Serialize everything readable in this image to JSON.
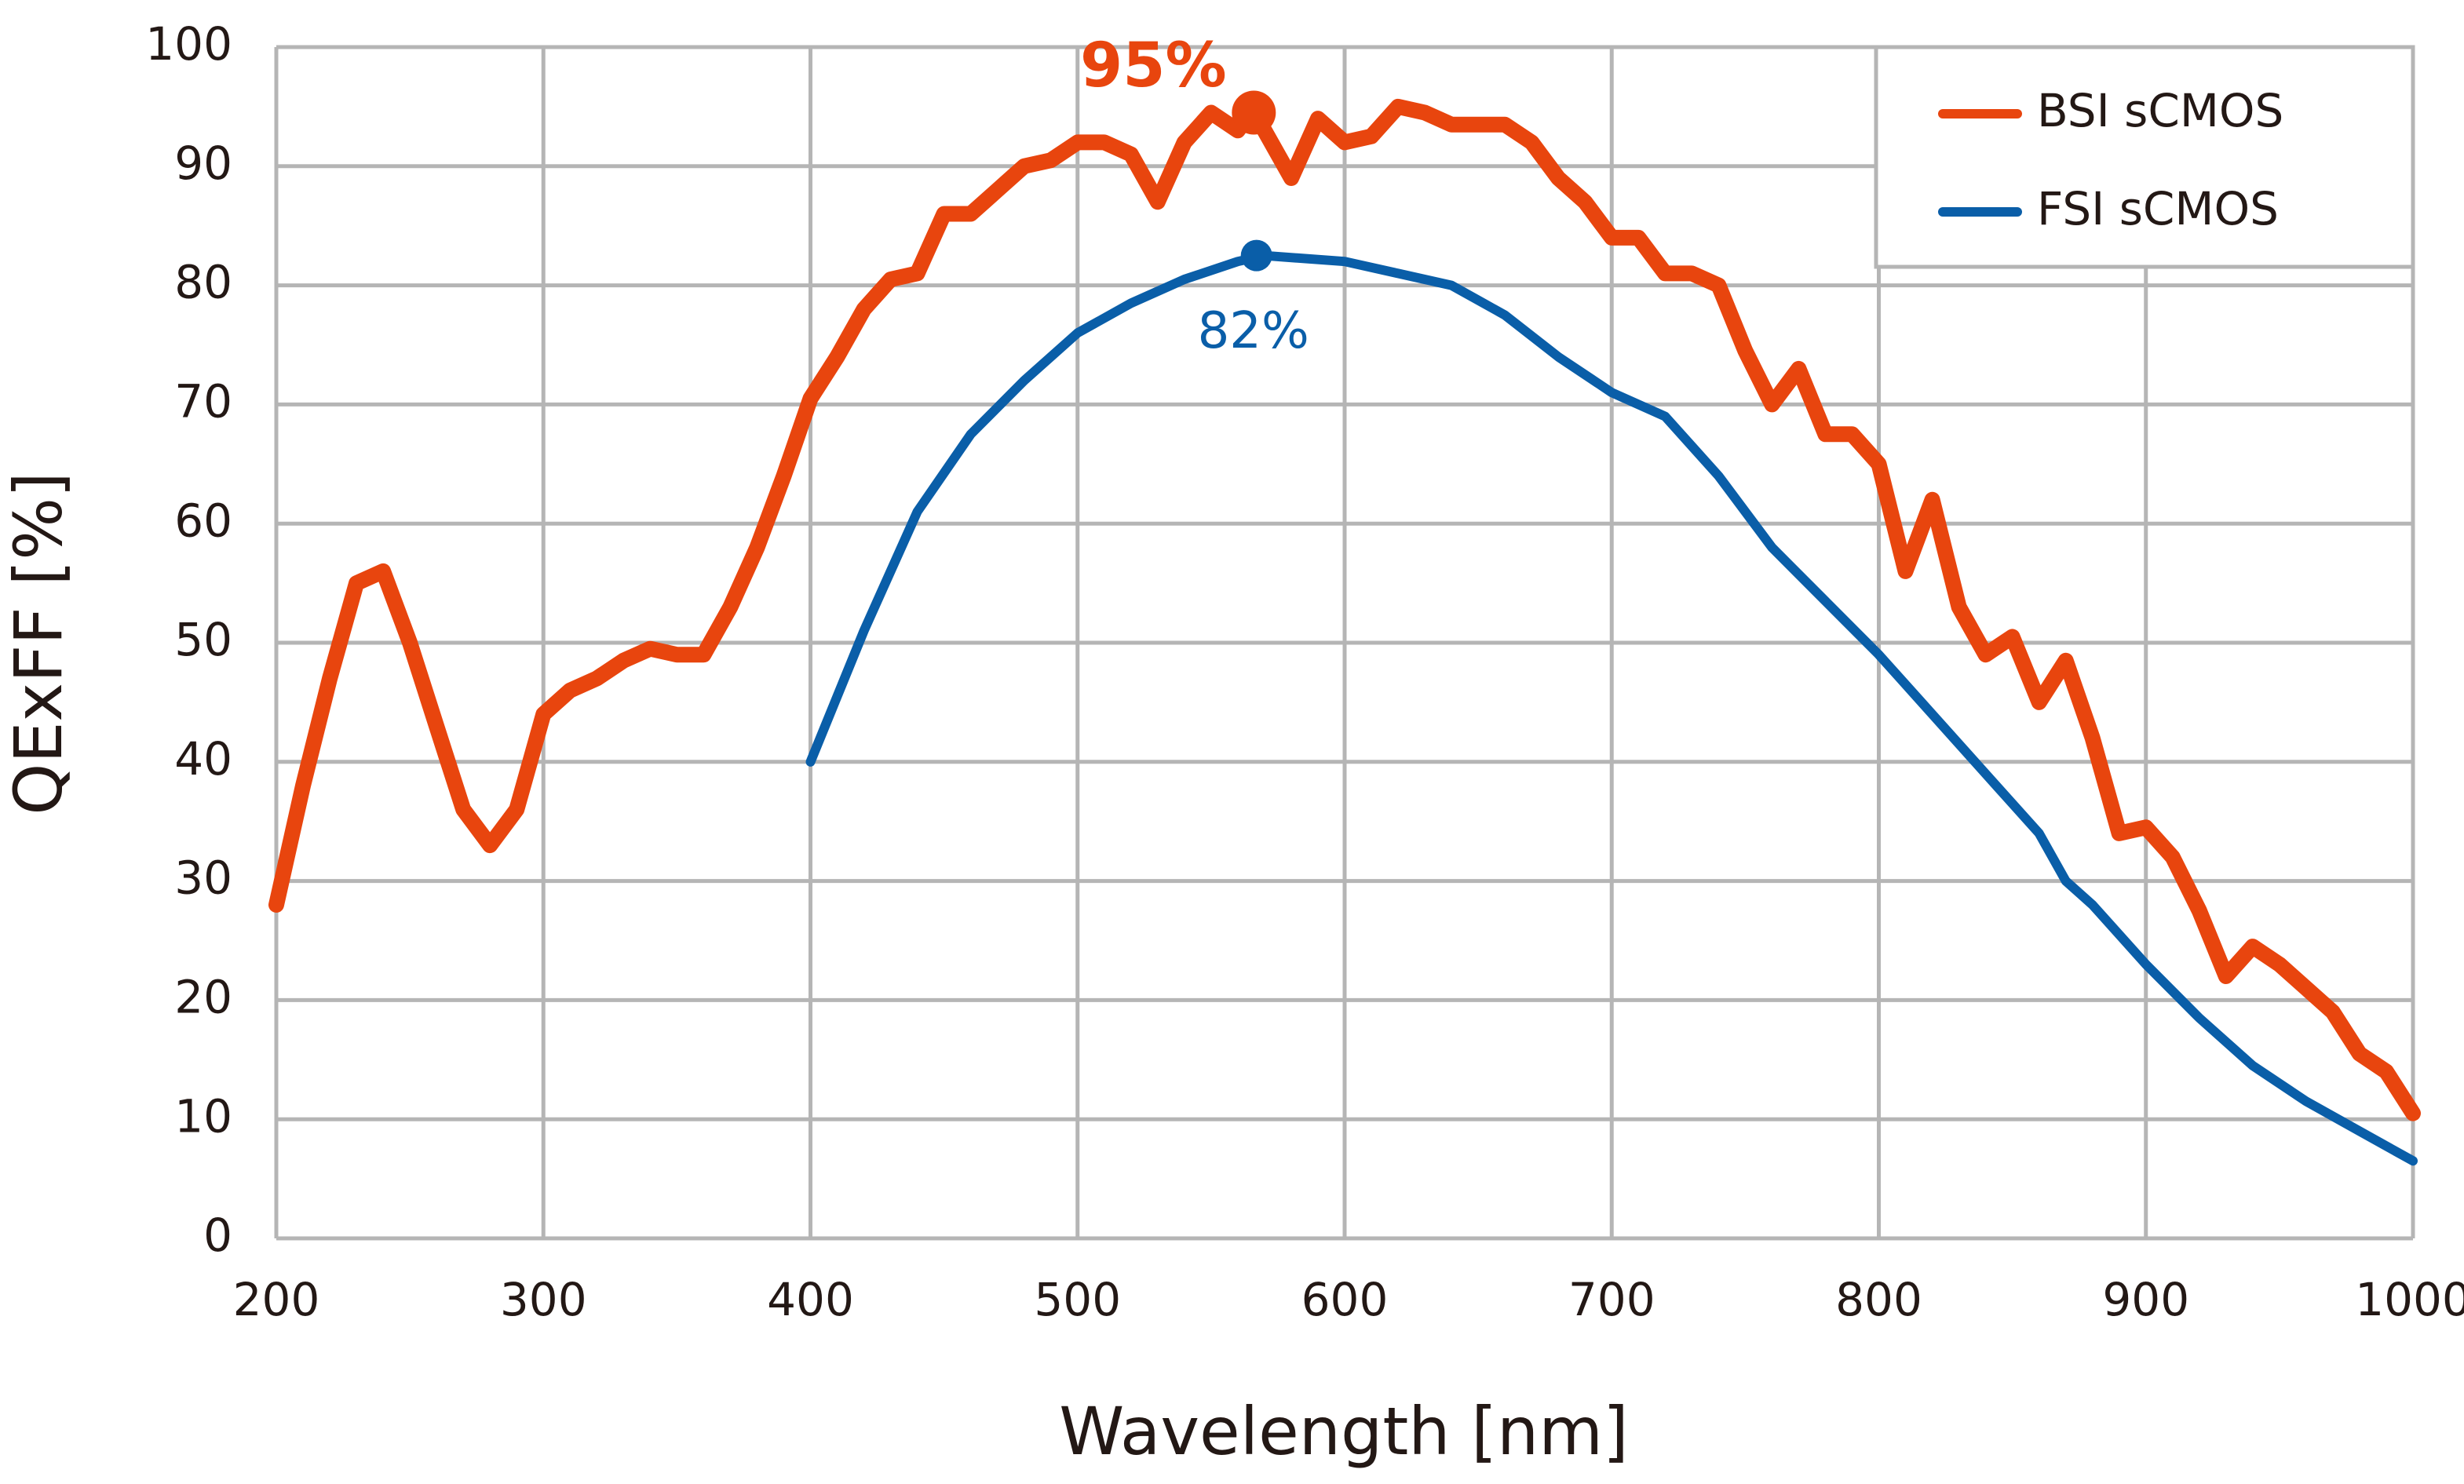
{
  "chart_data": {
    "type": "line",
    "xlabel": "Wavelength [nm]",
    "ylabel": "QExFF [%]",
    "xlim": [
      200,
      1000
    ],
    "xticks": [
      200,
      300,
      400,
      500,
      600,
      700,
      800,
      900,
      1000
    ],
    "ylim": [
      0,
      100
    ],
    "yticks": [
      0,
      10,
      20,
      30,
      40,
      50,
      60,
      70,
      80,
      90,
      100
    ],
    "grid": true,
    "legend": "upper right",
    "series": [
      {
        "name": "BSI sCMOS",
        "color": "#e8450e",
        "x": [
          200,
          210,
          220,
          230,
          240,
          250,
          260,
          270,
          280,
          290,
          300,
          310,
          320,
          330,
          340,
          350,
          360,
          370,
          380,
          390,
          400,
          410,
          420,
          430,
          440,
          450,
          460,
          470,
          480,
          490,
          500,
          510,
          520,
          530,
          540,
          550,
          560,
          565,
          570,
          580,
          590,
          600,
          610,
          620,
          630,
          640,
          650,
          660,
          670,
          680,
          690,
          700,
          710,
          720,
          730,
          740,
          750,
          760,
          770,
          780,
          790,
          800,
          810,
          820,
          830,
          840,
          850,
          860,
          870,
          880,
          890,
          900,
          910,
          920,
          930,
          940,
          950,
          960,
          970,
          980,
          990,
          1000
        ],
        "values": [
          28,
          38,
          47,
          55,
          56,
          50,
          43,
          36,
          33,
          36,
          44,
          46,
          47,
          48.5,
          49.5,
          49,
          49,
          53,
          58,
          64,
          70.5,
          74,
          78,
          80.5,
          81,
          86,
          86,
          88,
          90,
          90.5,
          92,
          92,
          91,
          87,
          92,
          94.5,
          93,
          94.5,
          93,
          89,
          94,
          92,
          92.5,
          95,
          94.5,
          93.5,
          93.5,
          93.5,
          92,
          89,
          87,
          84,
          84,
          81,
          81,
          80,
          74.5,
          70,
          73,
          67.5,
          67.5,
          65,
          56,
          62,
          53,
          49,
          50.5,
          45,
          48.5,
          42,
          34,
          34.5,
          32,
          27.5,
          22,
          24.5,
          23,
          21,
          19,
          15.5,
          14,
          10.5
        ]
      },
      {
        "name": "FSI sCMOS",
        "color": "#0a5ea8",
        "x": [
          400,
          420,
          440,
          460,
          480,
          500,
          520,
          540,
          560,
          570,
          600,
          620,
          640,
          660,
          680,
          700,
          720,
          740,
          760,
          780,
          800,
          820,
          840,
          860,
          870,
          880,
          900,
          920,
          940,
          960,
          980,
          1000
        ],
        "values": [
          40,
          51,
          61,
          67.5,
          72,
          76,
          78.5,
          80.5,
          82,
          82.5,
          82,
          81,
          80,
          77.5,
          74,
          71,
          69,
          64,
          58,
          53.5,
          49,
          44,
          39,
          34,
          30,
          28,
          23,
          18.5,
          14.5,
          11.5,
          9,
          6.5
        ]
      }
    ],
    "annotations": [
      {
        "text": "95%",
        "x": 566,
        "y": 94.5,
        "color": "#e8450e"
      },
      {
        "text": "82%",
        "x": 567,
        "y": 82.5,
        "color": "#0a5ea8"
      }
    ]
  }
}
